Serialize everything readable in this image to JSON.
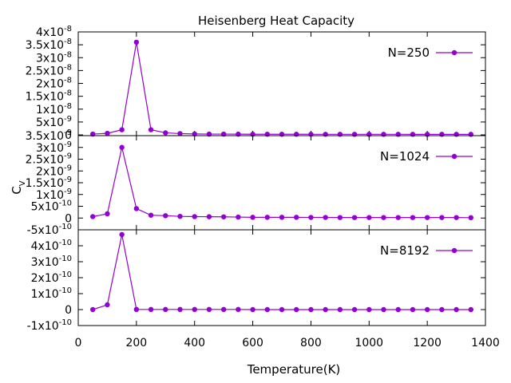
{
  "chart_data": {
    "type": "line",
    "title": "Heisenberg Heat Capacity",
    "xlabel": "Temperature(K)",
    "ylabel": "C",
    "ylabel_sub": "V",
    "xlim": [
      0,
      1400
    ],
    "xticks": [
      "0",
      "200",
      "400",
      "600",
      "800",
      "1000",
      "1200",
      "1400"
    ],
    "color": "#9400d3",
    "x": [
      50,
      100,
      150,
      200,
      250,
      300,
      350,
      400,
      450,
      500,
      550,
      600,
      650,
      700,
      750,
      800,
      850,
      900,
      950,
      1000,
      1050,
      1100,
      1150,
      1200,
      1250,
      1300,
      1350
    ],
    "panels": [
      {
        "series": [
          {
            "name": "N=250",
            "values": [
              3e-10,
              6e-10,
              2e-09,
              3.6e-08,
              2e-09,
              8e-10,
              5e-10,
              3.5e-10,
              3e-10,
              3e-10,
              2.8e-10,
              2.5e-10,
              2.5e-10,
              2.4e-10,
              2.4e-10,
              2.3e-10,
              2.3e-10,
              2.3e-10,
              2.2e-10,
              2.2e-10,
              2.2e-10,
              2.2e-10,
              2.1e-10,
              2.1e-10,
              2.1e-10,
              2.1e-10,
              2e-10
            ]
          }
        ],
        "ylim": [
          -3e-10,
          4e-08
        ],
        "yticks": [
          {
            "value": 0,
            "mant": "0",
            "exp": ""
          },
          {
            "value": 5e-09,
            "mant": "5x10",
            "exp": "-9"
          },
          {
            "value": 1e-08,
            "mant": "1x10",
            "exp": "-8"
          },
          {
            "value": 1.5e-08,
            "mant": "1.5x10",
            "exp": "-8"
          },
          {
            "value": 2e-08,
            "mant": "2x10",
            "exp": "-8"
          },
          {
            "value": 2.5e-08,
            "mant": "2.5x10",
            "exp": "-8"
          },
          {
            "value": 3e-08,
            "mant": "3x10",
            "exp": "-8"
          },
          {
            "value": 3.5e-08,
            "mant": "3.5x10",
            "exp": "-8"
          },
          {
            "value": 4e-08,
            "mant": "4x10",
            "exp": "-8"
          }
        ]
      },
      {
        "series": [
          {
            "name": "N=1024",
            "values": [
              6e-11,
              1.8e-10,
              3e-09,
              4e-10,
              1.2e-10,
              1e-10,
              7e-11,
              6e-11,
              5.5e-11,
              5e-11,
              4e-11,
              3e-11,
              3e-11,
              3e-11,
              3e-11,
              2.5e-11,
              2.5e-11,
              2e-11,
              2e-11,
              2e-11,
              2e-11,
              2e-11,
              2e-11,
              2e-11,
              2e-11,
              2e-11,
              1.5e-11
            ]
          }
        ],
        "ylim": [
          -5e-10,
          3.5e-09
        ],
        "yticks": [
          {
            "value": -5e-10,
            "mant": "-5x10",
            "exp": "-10"
          },
          {
            "value": 0,
            "mant": "0",
            "exp": ""
          },
          {
            "value": 5e-10,
            "mant": "5x10",
            "exp": "-10"
          },
          {
            "value": 1e-09,
            "mant": "1x10",
            "exp": "-9"
          },
          {
            "value": 1.5e-09,
            "mant": "1.5x10",
            "exp": "-9"
          },
          {
            "value": 2e-09,
            "mant": "2x10",
            "exp": "-9"
          },
          {
            "value": 2.5e-09,
            "mant": "2.5x10",
            "exp": "-9"
          },
          {
            "value": 3e-09,
            "mant": "3x10",
            "exp": "-9"
          },
          {
            "value": 3.5e-09,
            "mant": "3.5x10",
            "exp": "-9"
          }
        ]
      },
      {
        "series": [
          {
            "name": "N=8192",
            "values": [
              0.0,
              3e-11,
              4.7e-10,
              1e-12,
              1e-12,
              1e-12,
              1e-12,
              1e-12,
              1e-12,
              1e-12,
              1e-12,
              0.0,
              0.0,
              0.0,
              0.0,
              0.0,
              0.0,
              0.0,
              0.0,
              0.0,
              0.0,
              0.0,
              0.0,
              0.0,
              0.0,
              0.0,
              0.0
            ]
          }
        ],
        "ylim": [
          -1e-10,
          5e-10
        ],
        "yticks": [
          {
            "value": -1e-10,
            "mant": "-1x10",
            "exp": "-10"
          },
          {
            "value": 0,
            "mant": "0",
            "exp": ""
          },
          {
            "value": 1e-10,
            "mant": "1x10",
            "exp": "-10"
          },
          {
            "value": 2e-10,
            "mant": "2x10",
            "exp": "-10"
          },
          {
            "value": 3e-10,
            "mant": "3x10",
            "exp": "-10"
          },
          {
            "value": 4e-10,
            "mant": "4x10",
            "exp": "-10"
          }
        ]
      }
    ]
  }
}
